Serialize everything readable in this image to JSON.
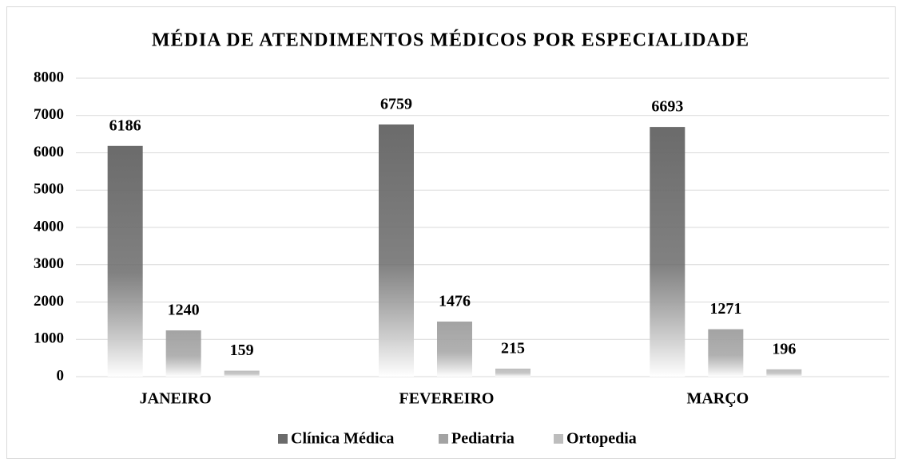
{
  "chart_data": {
    "type": "bar",
    "title": "MÉDIA DE ATENDIMENTOS MÉDICOS POR ESPECIALIDADE",
    "categories": [
      "JANEIRO",
      "FEVEREIRO",
      "MARÇO"
    ],
    "series": [
      {
        "name": "Clínica Médica",
        "color": "#6b6b6b",
        "values": [
          6186,
          6759,
          6693
        ]
      },
      {
        "name": "Pediatria",
        "color": "#a3a3a3",
        "values": [
          1240,
          1476,
          1271
        ]
      },
      {
        "name": "Ortopedia",
        "color": "#bdbdbd",
        "values": [
          159,
          215,
          196
        ]
      }
    ],
    "ylim": [
      0,
      8000
    ],
    "yticks": [
      0,
      1000,
      2000,
      3000,
      4000,
      5000,
      6000,
      7000,
      8000
    ],
    "grid": true,
    "legend": "bottom"
  }
}
